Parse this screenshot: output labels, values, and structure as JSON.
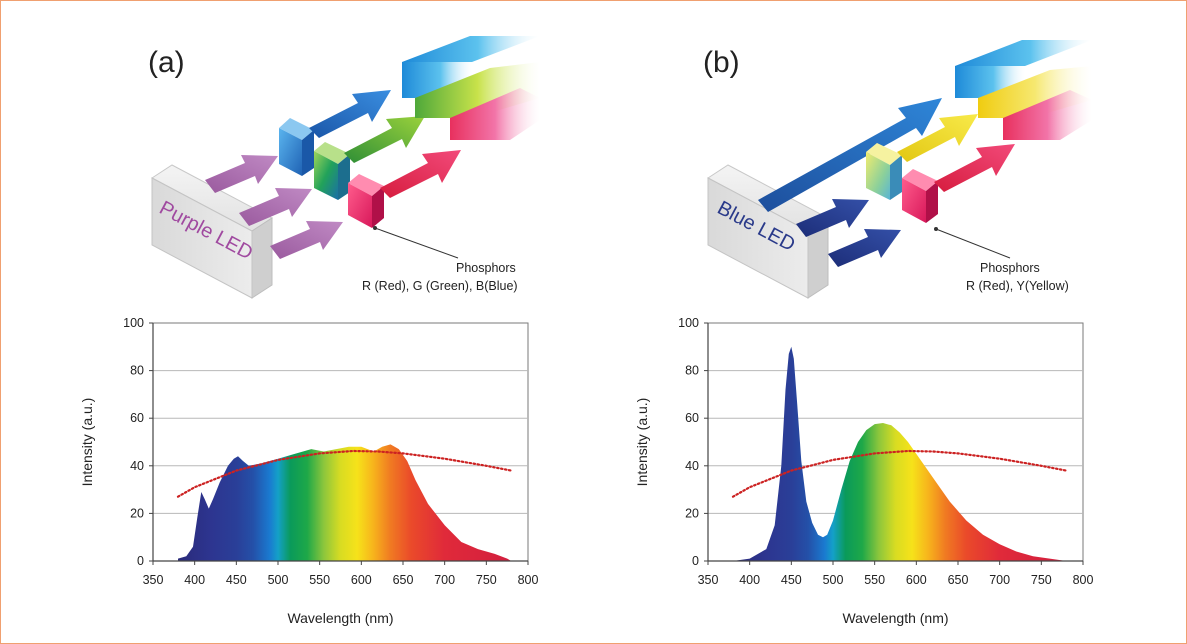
{
  "colors": {
    "frame": "#f0a070",
    "purple_arrow": "#a56fa8",
    "navy_arrow": "#223a8a",
    "blue": "#2a6fc0",
    "green": "#4aa83c",
    "yellow": "#efd21f",
    "red": "#e8254e",
    "pink": "#e6348a",
    "dotted_curve": "#cc2222"
  },
  "panels": [
    {
      "label": "(a)",
      "led_label": "Purple LED",
      "led_text_color": "#a04aa0",
      "phosphor_title": "Phosphors",
      "phosphor_desc": "R (Red), G (Green), B(Blue)"
    },
    {
      "label": "(b)",
      "led_label": "Blue LED",
      "led_text_color": "#2a3a8a",
      "phosphor_title": "Phosphors",
      "phosphor_desc": "R (Red), Y(Yellow)"
    }
  ],
  "chart_data": [
    {
      "type": "area",
      "xlabel": "Wavelength (nm)",
      "ylabel": "Intensity (a.u.)",
      "xlim": [
        350,
        800
      ],
      "ylim": [
        0,
        100
      ],
      "xticks": [
        350,
        400,
        450,
        500,
        550,
        600,
        650,
        700,
        750,
        800
      ],
      "yticks": [
        0,
        20,
        40,
        60,
        80,
        100
      ],
      "grid": "horizontal",
      "fill": "spectral rainbow gradient",
      "series": [
        {
          "kind": "spectrum",
          "x": [
            380,
            390,
            398,
            403,
            408,
            412,
            417,
            422,
            430,
            440,
            447,
            452,
            458,
            465,
            480,
            500,
            520,
            540,
            555,
            570,
            585,
            600,
            615,
            625,
            635,
            645,
            655,
            665,
            680,
            700,
            720,
            740,
            760,
            775,
            780
          ],
          "y": [
            1,
            2,
            6,
            18,
            29,
            26,
            22,
            26,
            33,
            40,
            43,
            44,
            42,
            40,
            41,
            43,
            45,
            47,
            46,
            47,
            48,
            48,
            46,
            48,
            49,
            47,
            42,
            34,
            24,
            15,
            8,
            5,
            3,
            1,
            0
          ]
        },
        {
          "kind": "dotted_reference",
          "x": [
            380,
            400,
            450,
            500,
            550,
            590,
            620,
            650,
            700,
            750,
            780
          ],
          "y": [
            27,
            31,
            38,
            42.5,
            45.2,
            46.2,
            46,
            45.2,
            43,
            40,
            38
          ]
        }
      ]
    },
    {
      "type": "area",
      "xlabel": "Wavelength (nm)",
      "ylabel": "Intensity (a.u.)",
      "xlim": [
        350,
        800
      ],
      "ylim": [
        0,
        100
      ],
      "xticks": [
        350,
        400,
        450,
        500,
        550,
        600,
        650,
        700,
        750,
        800
      ],
      "yticks": [
        0,
        20,
        40,
        60,
        80,
        100
      ],
      "grid": "horizontal",
      "fill": "spectral rainbow gradient",
      "series": [
        {
          "kind": "spectrum",
          "x": [
            380,
            400,
            420,
            430,
            438,
            443,
            447,
            450,
            453,
            457,
            462,
            468,
            475,
            482,
            488,
            493,
            500,
            510,
            520,
            530,
            540,
            550,
            560,
            570,
            580,
            590,
            600,
            620,
            640,
            660,
            680,
            700,
            720,
            740,
            760,
            780
          ],
          "y": [
            0,
            1,
            5,
            15,
            40,
            72,
            87,
            90,
            85,
            66,
            42,
            25,
            16,
            11,
            10,
            11,
            17,
            30,
            42,
            50,
            55,
            57.5,
            58,
            57,
            54,
            50,
            45,
            35,
            25,
            17,
            11,
            7,
            4,
            2,
            1,
            0
          ]
        },
        {
          "kind": "dotted_reference",
          "x": [
            380,
            400,
            450,
            500,
            550,
            590,
            620,
            650,
            700,
            750,
            780
          ],
          "y": [
            27,
            31,
            38,
            42.5,
            45.2,
            46.2,
            46,
            45.2,
            43,
            40,
            38
          ]
        }
      ]
    }
  ]
}
